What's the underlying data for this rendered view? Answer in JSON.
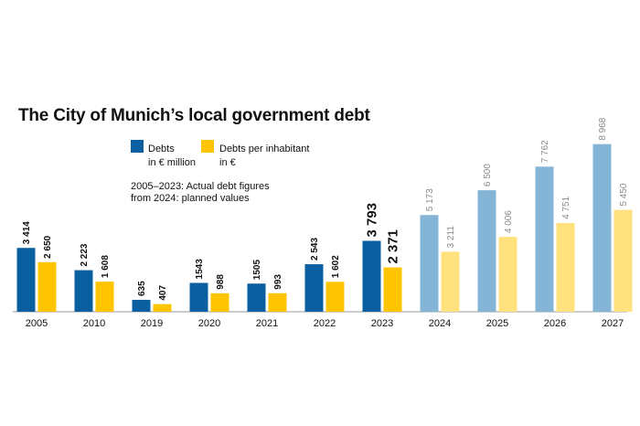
{
  "chart_data": {
    "type": "bar",
    "title": "The City of Munich’s local government debt",
    "note": [
      "2005–2023: Actual debt figures",
      "from 2024: planned values"
    ],
    "categories": [
      "2005",
      "2010",
      "2019",
      "2020",
      "2021",
      "2022",
      "2023",
      "2024",
      "2025",
      "2026",
      "2027"
    ],
    "planned_from": "2024",
    "highlight": "2023",
    "series": [
      {
        "name": "Debts in € million",
        "legend": [
          "Debts",
          "in € million"
        ],
        "color": "#0a5fa0",
        "planned_color": "#84b4d6",
        "values": [
          3414,
          2223,
          635,
          1543,
          1505,
          2543,
          3793,
          5173,
          6500,
          7762,
          8968
        ],
        "labels": [
          "3 414",
          "2 223",
          "635",
          "1543",
          "1505",
          "2 543",
          "3 793",
          "5 173",
          "6 500",
          "7 762",
          "8 968"
        ]
      },
      {
        "name": "Debts per inhabitant in €",
        "legend": [
          "Debts per inhabitant",
          "in €"
        ],
        "color": "#ffc400",
        "planned_color": "#ffe17e",
        "values": [
          2650,
          1608,
          407,
          988,
          993,
          1602,
          2371,
          3211,
          4006,
          4751,
          5450
        ],
        "labels": [
          "2 650",
          "1 608",
          "407",
          "988",
          "993",
          "1 602",
          "2 371",
          "3 211",
          "4 006",
          "4 751",
          "5 450"
        ]
      }
    ],
    "ylim": [
      0,
      9000
    ],
    "grid": false
  }
}
